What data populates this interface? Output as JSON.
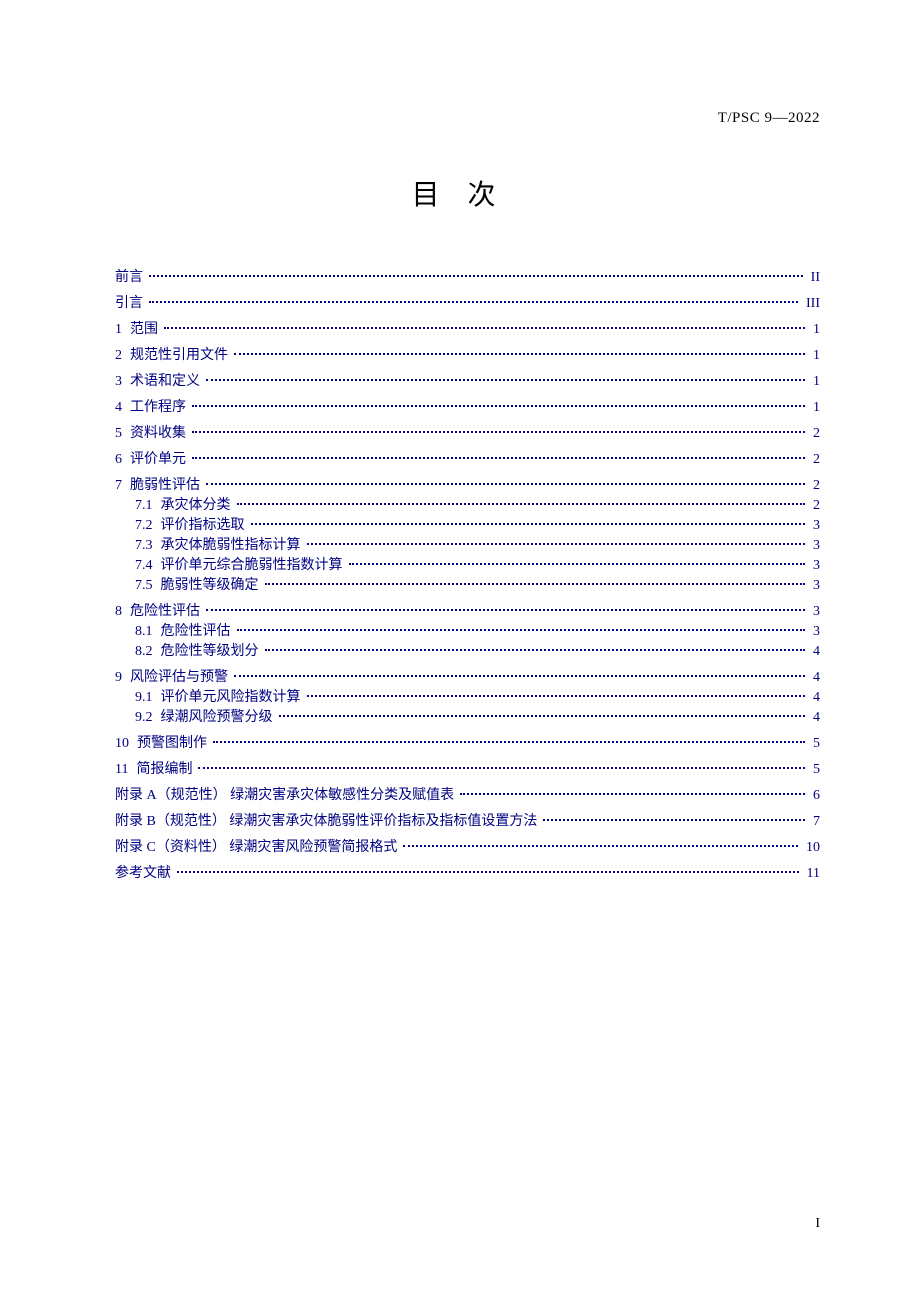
{
  "header": {
    "code": "T/PSC  9—2022"
  },
  "title": "目次",
  "colors": {
    "toc": "#000080",
    "text": "#000000",
    "bg": "#ffffff"
  },
  "footer": {
    "page": "I"
  },
  "toc": [
    {
      "level": 0,
      "num": "",
      "label": "前言",
      "page": "II"
    },
    {
      "level": 0,
      "num": "",
      "label": "引言",
      "page": "III"
    },
    {
      "level": 0,
      "num": "1",
      "label": "范围",
      "page": "1"
    },
    {
      "level": 0,
      "num": "2",
      "label": "规范性引用文件",
      "page": "1"
    },
    {
      "level": 0,
      "num": "3",
      "label": "术语和定义",
      "page": "1"
    },
    {
      "level": 0,
      "num": "4",
      "label": "工作程序",
      "page": "1"
    },
    {
      "level": 0,
      "num": "5",
      "label": "资料收集",
      "page": "2"
    },
    {
      "level": 0,
      "num": "6",
      "label": "评价单元",
      "page": "2"
    },
    {
      "level": 0,
      "num": "7",
      "label": "脆弱性评估",
      "page": "2"
    },
    {
      "level": 1,
      "num": "7.1",
      "label": "承灾体分类",
      "page": "2"
    },
    {
      "level": 1,
      "num": "7.2",
      "label": "评价指标选取",
      "page": "3"
    },
    {
      "level": 1,
      "num": "7.3",
      "label": "承灾体脆弱性指标计算",
      "page": "3"
    },
    {
      "level": 1,
      "num": "7.4",
      "label": "评价单元综合脆弱性指数计算",
      "page": "3"
    },
    {
      "level": 1,
      "num": "7.5",
      "label": "脆弱性等级确定",
      "page": "3"
    },
    {
      "level": 0,
      "num": "8",
      "label": "危险性评估",
      "page": "3"
    },
    {
      "level": 1,
      "num": "8.1",
      "label": "危险性评估",
      "page": "3"
    },
    {
      "level": 1,
      "num": "8.2",
      "label": "危险性等级划分",
      "page": "4"
    },
    {
      "level": 0,
      "num": "9",
      "label": "风险评估与预警",
      "page": "4"
    },
    {
      "level": 1,
      "num": "9.1",
      "label": "评价单元风险指数计算",
      "page": "4"
    },
    {
      "level": 1,
      "num": "9.2",
      "label": "绿潮风险预警分级",
      "page": "4"
    },
    {
      "level": 0,
      "num": "10",
      "label": "预警图制作",
      "page": "5"
    },
    {
      "level": 0,
      "num": "11",
      "label": "简报编制",
      "page": "5"
    },
    {
      "level": 0,
      "num": "",
      "label": "附录 A（规范性）  绿潮灾害承灾体敏感性分类及赋值表",
      "page": "6"
    },
    {
      "level": 0,
      "num": "",
      "label": "附录 B（规范性）  绿潮灾害承灾体脆弱性评价指标及指标值设置方法",
      "page": "7"
    },
    {
      "level": 0,
      "num": "",
      "label": "附录 C（资料性）  绿潮灾害风险预警简报格式",
      "page": "10"
    },
    {
      "level": 0,
      "num": "",
      "label": "参考文献",
      "page": "11"
    }
  ]
}
